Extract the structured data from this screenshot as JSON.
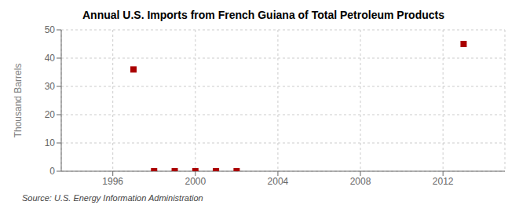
{
  "chart_data": {
    "type": "scatter",
    "title": "Annual U.S. Imports from French Guiana of Total Petroleum Products",
    "ylabel": "Thousand Barrels",
    "annotations": [
      "Source: U.S. Energy Information Administration"
    ],
    "x": [
      1997,
      1998,
      1999,
      2000,
      2001,
      2002,
      2013
    ],
    "values": [
      36,
      0,
      0,
      0,
      0,
      0,
      45
    ],
    "color": "#aa0000",
    "marker": "square",
    "xlim": [
      1993.5,
      2015
    ],
    "ylim": [
      0,
      50
    ],
    "xticks": [
      1996,
      2000,
      2004,
      2008,
      2012
    ],
    "yticks": [
      0,
      10,
      20,
      30,
      40,
      50
    ],
    "grid": true
  }
}
